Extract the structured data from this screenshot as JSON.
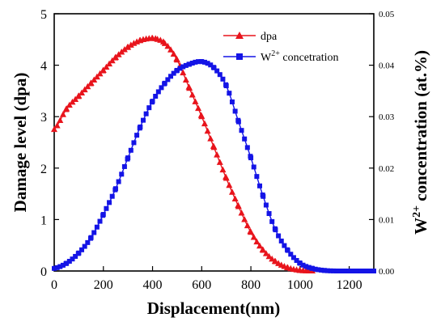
{
  "chart_data": {
    "type": "line",
    "xlabel": "Displacement(nm)",
    "ylabel": "Damage level (dpa)",
    "y2label_prefix": "W",
    "y2label_sup": "2+",
    "y2label_suffix": " concentration (at.%)",
    "xlim": [
      0,
      1300
    ],
    "ylim": [
      0,
      5
    ],
    "y2lim": [
      0,
      0.05
    ],
    "xticks": [
      0,
      200,
      400,
      600,
      800,
      1000,
      1200
    ],
    "yticks": [
      0,
      1,
      2,
      3,
      4,
      5
    ],
    "y2ticks": [
      "0.00",
      "0.01",
      "0.02",
      "0.03",
      "0.04",
      "0.05"
    ],
    "legend_position": "top-right",
    "series": [
      {
        "name": "dpa",
        "axis": "left",
        "marker": "triangle",
        "color": "#e8141c",
        "x": [
          0,
          50,
          100,
          150,
          200,
          250,
          300,
          350,
          400,
          420,
          450,
          500,
          550,
          600,
          650,
          700,
          750,
          800,
          850,
          900,
          950,
          1000,
          1050
        ],
        "y": [
          2.75,
          3.15,
          3.4,
          3.65,
          3.9,
          4.15,
          4.35,
          4.48,
          4.52,
          4.5,
          4.42,
          4.1,
          3.55,
          3.0,
          2.4,
          1.8,
          1.25,
          0.75,
          0.4,
          0.18,
          0.06,
          0.01,
          0.0
        ]
      },
      {
        "name": "W2+ concetration",
        "legend_main": "W",
        "legend_sup": "2+",
        "legend_rest": " concetration",
        "axis": "right",
        "marker": "square",
        "color": "#1414e6",
        "x": [
          0,
          50,
          100,
          150,
          200,
          250,
          300,
          350,
          400,
          450,
          500,
          550,
          600,
          650,
          700,
          750,
          800,
          850,
          900,
          950,
          1000,
          1050,
          1100,
          1150,
          1200,
          1250,
          1300
        ],
        "y": [
          0.0005,
          0.0015,
          0.0035,
          0.0065,
          0.011,
          0.016,
          0.022,
          0.028,
          0.033,
          0.0365,
          0.039,
          0.0402,
          0.0407,
          0.0395,
          0.036,
          0.029,
          0.022,
          0.0145,
          0.008,
          0.004,
          0.0015,
          0.0005,
          0.0001,
          0.0,
          0.0,
          0.0,
          0.0
        ]
      }
    ]
  }
}
